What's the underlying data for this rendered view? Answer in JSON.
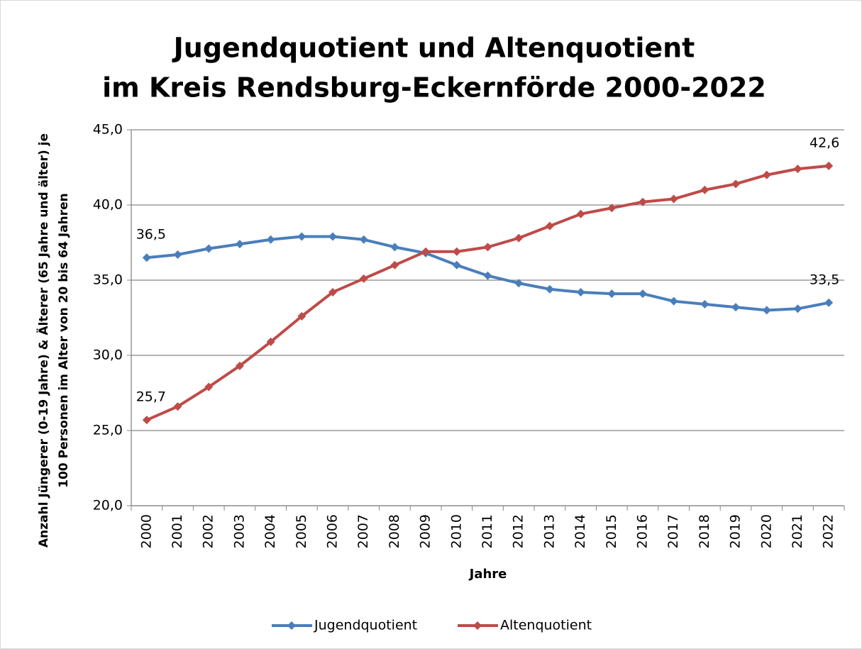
{
  "chart_data": {
    "type": "line",
    "title": [
      "Jugendquotient und Altenquotient",
      "im Kreis Rendsburg-Eckernförde 2000-2022"
    ],
    "ylabel": [
      "Anzahl Jüngerer (0-19 Jahre) & Älterer (65 Jahre und älter) je",
      "100 Personen im Alter von 20 bis 64 Jahren"
    ],
    "xlabel": "Jahre",
    "categories": [
      "2000",
      "2001",
      "2002",
      "2003",
      "2004",
      "2005",
      "2006",
      "2007",
      "2008",
      "2009",
      "2010",
      "2011",
      "2012",
      "2013",
      "2014",
      "2015",
      "2016",
      "2017",
      "2018",
      "2019",
      "2020",
      "2021",
      "2022"
    ],
    "series": [
      {
        "name": "Jugendquotient",
        "color": "#4a7ebb",
        "values": [
          36.5,
          36.7,
          37.1,
          37.4,
          37.7,
          37.9,
          37.9,
          37.7,
          37.2,
          36.8,
          36.0,
          35.3,
          34.8,
          34.4,
          34.2,
          34.1,
          34.1,
          33.6,
          33.4,
          33.2,
          33.0,
          33.1,
          33.5
        ],
        "value_labels": [
          "36,5",
          null,
          null,
          null,
          null,
          null,
          null,
          null,
          null,
          null,
          null,
          null,
          null,
          null,
          null,
          null,
          null,
          null,
          null,
          null,
          null,
          null,
          "33,5"
        ]
      },
      {
        "name": "Altenquotient",
        "color": "#be4b48",
        "values": [
          25.7,
          26.6,
          27.9,
          29.3,
          30.9,
          32.6,
          34.2,
          35.1,
          36.0,
          36.9,
          36.9,
          37.2,
          37.8,
          38.6,
          39.4,
          39.8,
          40.2,
          40.4,
          41.0,
          41.4,
          42.0,
          42.4,
          42.6
        ],
        "value_labels": [
          "25,7",
          null,
          null,
          null,
          null,
          null,
          null,
          null,
          null,
          null,
          null,
          null,
          null,
          null,
          null,
          null,
          null,
          null,
          null,
          null,
          null,
          null,
          "42,6"
        ]
      }
    ],
    "ylim": [
      20,
      45
    ],
    "yticks": [
      {
        "value": 20,
        "label": "20,0"
      },
      {
        "value": 25,
        "label": "25,0"
      },
      {
        "value": 30,
        "label": "30,0"
      },
      {
        "value": 35,
        "label": "35,0"
      },
      {
        "value": 40,
        "label": "40,0"
      },
      {
        "value": 45,
        "label": "45,0"
      }
    ],
    "grid": true,
    "legend": "bottom"
  }
}
